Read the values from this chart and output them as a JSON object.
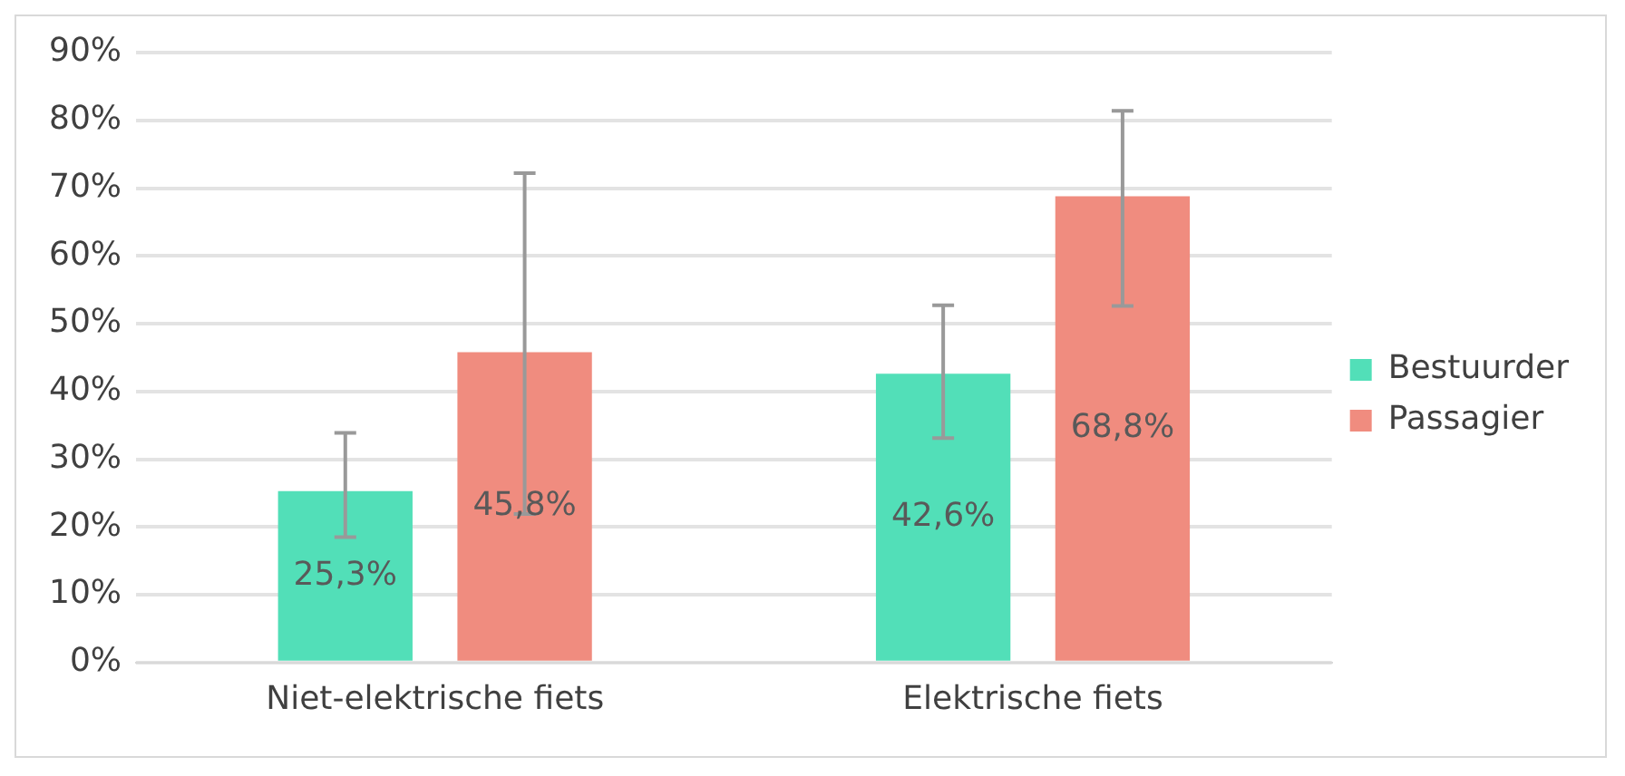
{
  "chart_data": {
    "type": "bar",
    "categories": [
      "Niet-elektrische fiets",
      "Elektrische fiets"
    ],
    "series": [
      {
        "name": "Bestuurder",
        "color": "#52dfb8",
        "values": [
          25.3,
          42.6
        ],
        "errors": [
          [
            18.5,
            33.9
          ],
          [
            33.1,
            52.7
          ]
        ],
        "value_labels": [
          "25,3%",
          "42,6%"
        ]
      },
      {
        "name": "Passagier",
        "color": "#f08c7f",
        "values": [
          45.8,
          68.8
        ],
        "errors": [
          [
            21.9,
            72.2
          ],
          [
            52.6,
            81.4
          ]
        ],
        "value_labels": [
          "45,8%",
          "68,8%"
        ]
      }
    ],
    "ylim": [
      0,
      90
    ],
    "yticks": [
      {
        "value": 0,
        "label": "0%"
      },
      {
        "value": 10,
        "label": "10%"
      },
      {
        "value": 20,
        "label": "20%"
      },
      {
        "value": 30,
        "label": "30%"
      },
      {
        "value": 40,
        "label": "40%"
      },
      {
        "value": 50,
        "label": "50%"
      },
      {
        "value": 60,
        "label": "60%"
      },
      {
        "value": 70,
        "label": "70%"
      },
      {
        "value": 80,
        "label": "80%"
      },
      {
        "value": 90,
        "label": "90%"
      }
    ],
    "grid": "y",
    "legend": "right"
  }
}
